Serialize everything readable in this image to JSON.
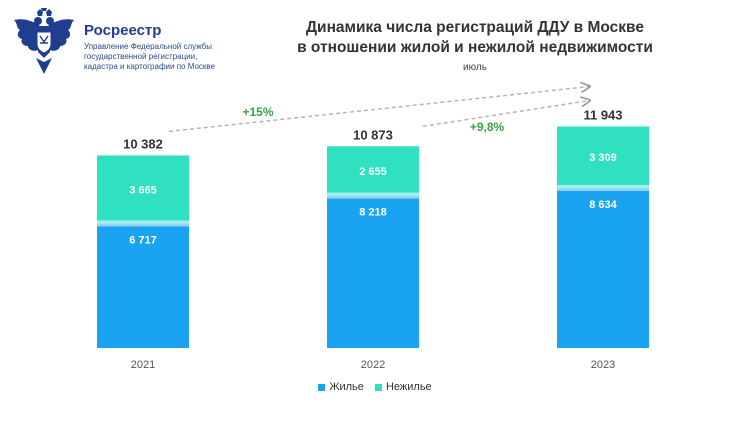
{
  "org": {
    "name": "Росреестр",
    "subtitle_lines": [
      "Управление Федеральной службы",
      "государственной регистрации,",
      "кадастра и картографии по Москве"
    ]
  },
  "colors": {
    "residential": "#1aa3f0",
    "nonresidential": "#2fe0c1",
    "growth_label": "#3aa04a",
    "arrow": "#b5b5b5"
  },
  "chart_data": {
    "type": "bar",
    "stacked": true,
    "title_lines": [
      "Динамика числа регистраций ДДУ в Москве",
      "в отношении жилой и нежилой недвижимости"
    ],
    "subtitle": "июль",
    "categories": [
      "2021",
      "2022",
      "2023"
    ],
    "series": [
      {
        "name": "Жилье",
        "values": [
          6717,
          8218,
          8634
        ],
        "labels": [
          "6 717",
          "8 218",
          "8 634"
        ]
      },
      {
        "name": "Нежилье",
        "values": [
          3665,
          2655,
          3309
        ],
        "labels": [
          "3 665",
          "2 655",
          "3 309"
        ]
      }
    ],
    "totals": [
      10382,
      10873,
      11943
    ],
    "total_labels": [
      "10 382",
      "10 873",
      "11 943"
    ],
    "annotations": [
      {
        "text": "+15%",
        "from": "2021",
        "to": "2023"
      },
      {
        "text": "+9,8%",
        "from": "2022",
        "to": "2023"
      }
    ],
    "legend_position": "bottom",
    "grid": false
  }
}
